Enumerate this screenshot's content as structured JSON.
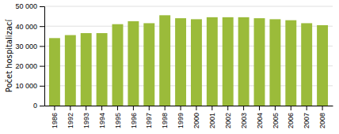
{
  "chart_data": {
    "type": "bar",
    "ylabel": "Počet hospitalizací",
    "categories": [
      "1986",
      "1992",
      "1993",
      "1994",
      "1995",
      "1996",
      "1997",
      "1998",
      "1999",
      "2000",
      "2001",
      "2002",
      "2003",
      "2004",
      "2005",
      "2006",
      "2007",
      "2008"
    ],
    "values": [
      34000,
      35500,
      36500,
      36500,
      41000,
      42500,
      41500,
      45500,
      44000,
      43500,
      44500,
      44500,
      44500,
      44000,
      43500,
      43000,
      41500,
      40500
    ],
    "color": "#9BBB3A",
    "ylim": [
      0,
      50000
    ],
    "yticks": [
      0,
      {
        "value": 10000,
        "label": "10 000"
      },
      {
        "value": 20000,
        "label": "20 000"
      },
      {
        "value": 30000,
        "label": "30 000"
      },
      {
        "value": 40000,
        "label": "40 000"
      },
      {
        "value": 50000,
        "label": "50 000"
      }
    ],
    "grid": true
  }
}
